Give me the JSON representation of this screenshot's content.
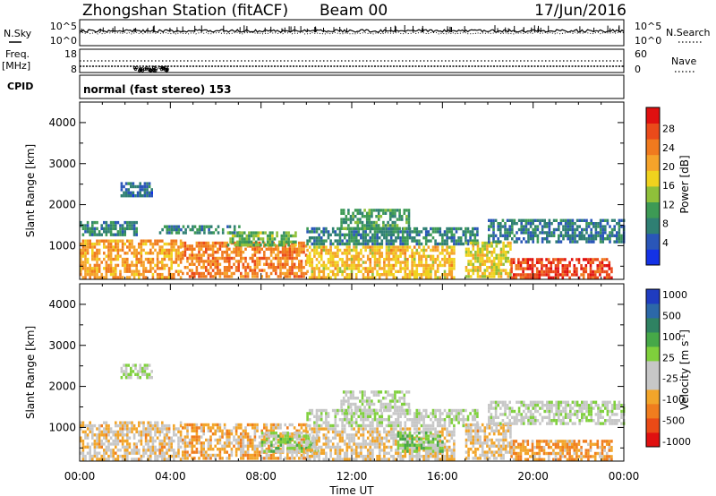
{
  "header": {
    "station": "Zhongshan Station (fitACF)",
    "beam": "Beam 00",
    "date": "17/Jun/2016"
  },
  "strips": {
    "nsky_label": "N.Sky",
    "nsearch_label": "N.Search",
    "nsky_ticks": [
      "10^5",
      "10^0"
    ],
    "nsearch_ticks": [
      "10^5",
      "10^0"
    ],
    "freq_label": "Freq.",
    "freq_unit": "[MHz]",
    "freq_ticks": [
      "18",
      "8"
    ],
    "nave_label": "Nave",
    "nave_ticks": [
      "60",
      "0"
    ],
    "cpid_label": "CPID",
    "cpid_text": "normal (fast stereo) 153"
  },
  "axes": {
    "xlabel": "Time UT",
    "x_ticks": [
      "00:00",
      "04:00",
      "08:00",
      "12:00",
      "16:00",
      "20:00",
      "00:00"
    ],
    "x_range_hours": [
      0,
      24
    ],
    "ylabel": "Slant Range [km]",
    "y_ticks": [
      1000,
      2000,
      3000,
      4000
    ],
    "y_range_km": [
      180,
      4500
    ]
  },
  "colors": {
    "power": [
      "#1432e6",
      "#2a56b8",
      "#2f7f73",
      "#3d9a55",
      "#8fc03a",
      "#f0d21e",
      "#f5a32a",
      "#f07a1e",
      "#ea4a1a",
      "#e01010"
    ],
    "velocity": [
      "#1f3cc0",
      "#2c68a8",
      "#2f8262",
      "#46a848",
      "#7fd03c",
      "#c7c7c7",
      "#c7c7c7",
      "#f2a52a",
      "#f07d1e",
      "#ea4a16",
      "#e01010"
    ]
  },
  "chart_data": [
    {
      "type": "heatmap",
      "panel": "power",
      "colorbar_label": "Power [dB]",
      "colorbar_ticks": [
        "4",
        "8",
        "12",
        "16",
        "20",
        "24",
        "28"
      ],
      "value_range": [
        0,
        30
      ],
      "x": "Time UT",
      "y": "Slant Range [km]",
      "regions": [
        {
          "t": [
            0.0,
            4.5
          ],
          "r": [
            250,
            1150
          ],
          "v": 20
        },
        {
          "t": [
            0.0,
            2.5
          ],
          "r": [
            1250,
            1600
          ],
          "v": 8
        },
        {
          "t": [
            1.8,
            3.2
          ],
          "r": [
            2200,
            2550
          ],
          "v": 6
        },
        {
          "t": [
            3.5,
            7.0
          ],
          "r": [
            1350,
            1500
          ],
          "v": 8
        },
        {
          "t": [
            4.5,
            10.0
          ],
          "r": [
            250,
            1100
          ],
          "v": 22
        },
        {
          "t": [
            6.5,
            9.5
          ],
          "r": [
            1050,
            1350
          ],
          "v": 12
        },
        {
          "t": [
            10.0,
            16.5
          ],
          "r": [
            250,
            1000
          ],
          "v": 18
        },
        {
          "t": [
            10.0,
            17.5
          ],
          "r": [
            1050,
            1450
          ],
          "v": 8
        },
        {
          "t": [
            11.5,
            14.5
          ],
          "r": [
            1450,
            1900
          ],
          "v": 10
        },
        {
          "t": [
            17.0,
            19.0
          ],
          "r": [
            250,
            1100
          ],
          "v": 16
        },
        {
          "t": [
            18.0,
            24.0
          ],
          "r": [
            1100,
            1650
          ],
          "v": 7
        },
        {
          "t": [
            19.0,
            23.5
          ],
          "r": [
            250,
            700
          ],
          "v": 26
        }
      ]
    },
    {
      "type": "heatmap",
      "panel": "velocity",
      "colorbar_label": "Velocity [m s^-1]",
      "colorbar_ticks": [
        "1000",
        "500",
        "100",
        "25",
        "-25",
        "-100",
        "-500",
        "-1000"
      ],
      "value_range": [
        -1200,
        1200
      ],
      "x": "Time UT",
      "y": "Slant Range [km]",
      "regions": [
        {
          "t": [
            0.0,
            4.5
          ],
          "r": [
            250,
            1150
          ],
          "v": -300
        },
        {
          "t": [
            1.8,
            3.2
          ],
          "r": [
            2200,
            2550
          ],
          "v": 0
        },
        {
          "t": [
            4.5,
            10.0
          ],
          "r": [
            250,
            1100
          ],
          "v": -400
        },
        {
          "t": [
            8.0,
            10.5
          ],
          "r": [
            450,
            900
          ],
          "v": 150
        },
        {
          "t": [
            10.0,
            16.5
          ],
          "r": [
            250,
            1000
          ],
          "v": -250
        },
        {
          "t": [
            10.0,
            17.5
          ],
          "r": [
            1050,
            1450
          ],
          "v": 0
        },
        {
          "t": [
            11.5,
            14.5
          ],
          "r": [
            1450,
            1900
          ],
          "v": 0
        },
        {
          "t": [
            14.0,
            16.0
          ],
          "r": [
            400,
            900
          ],
          "v": 200
        },
        {
          "t": [
            17.0,
            19.0
          ],
          "r": [
            250,
            1100
          ],
          "v": -300
        },
        {
          "t": [
            18.0,
            24.0
          ],
          "r": [
            1100,
            1650
          ],
          "v": 0
        },
        {
          "t": [
            19.0,
            23.5
          ],
          "r": [
            250,
            700
          ],
          "v": -500
        }
      ]
    }
  ]
}
